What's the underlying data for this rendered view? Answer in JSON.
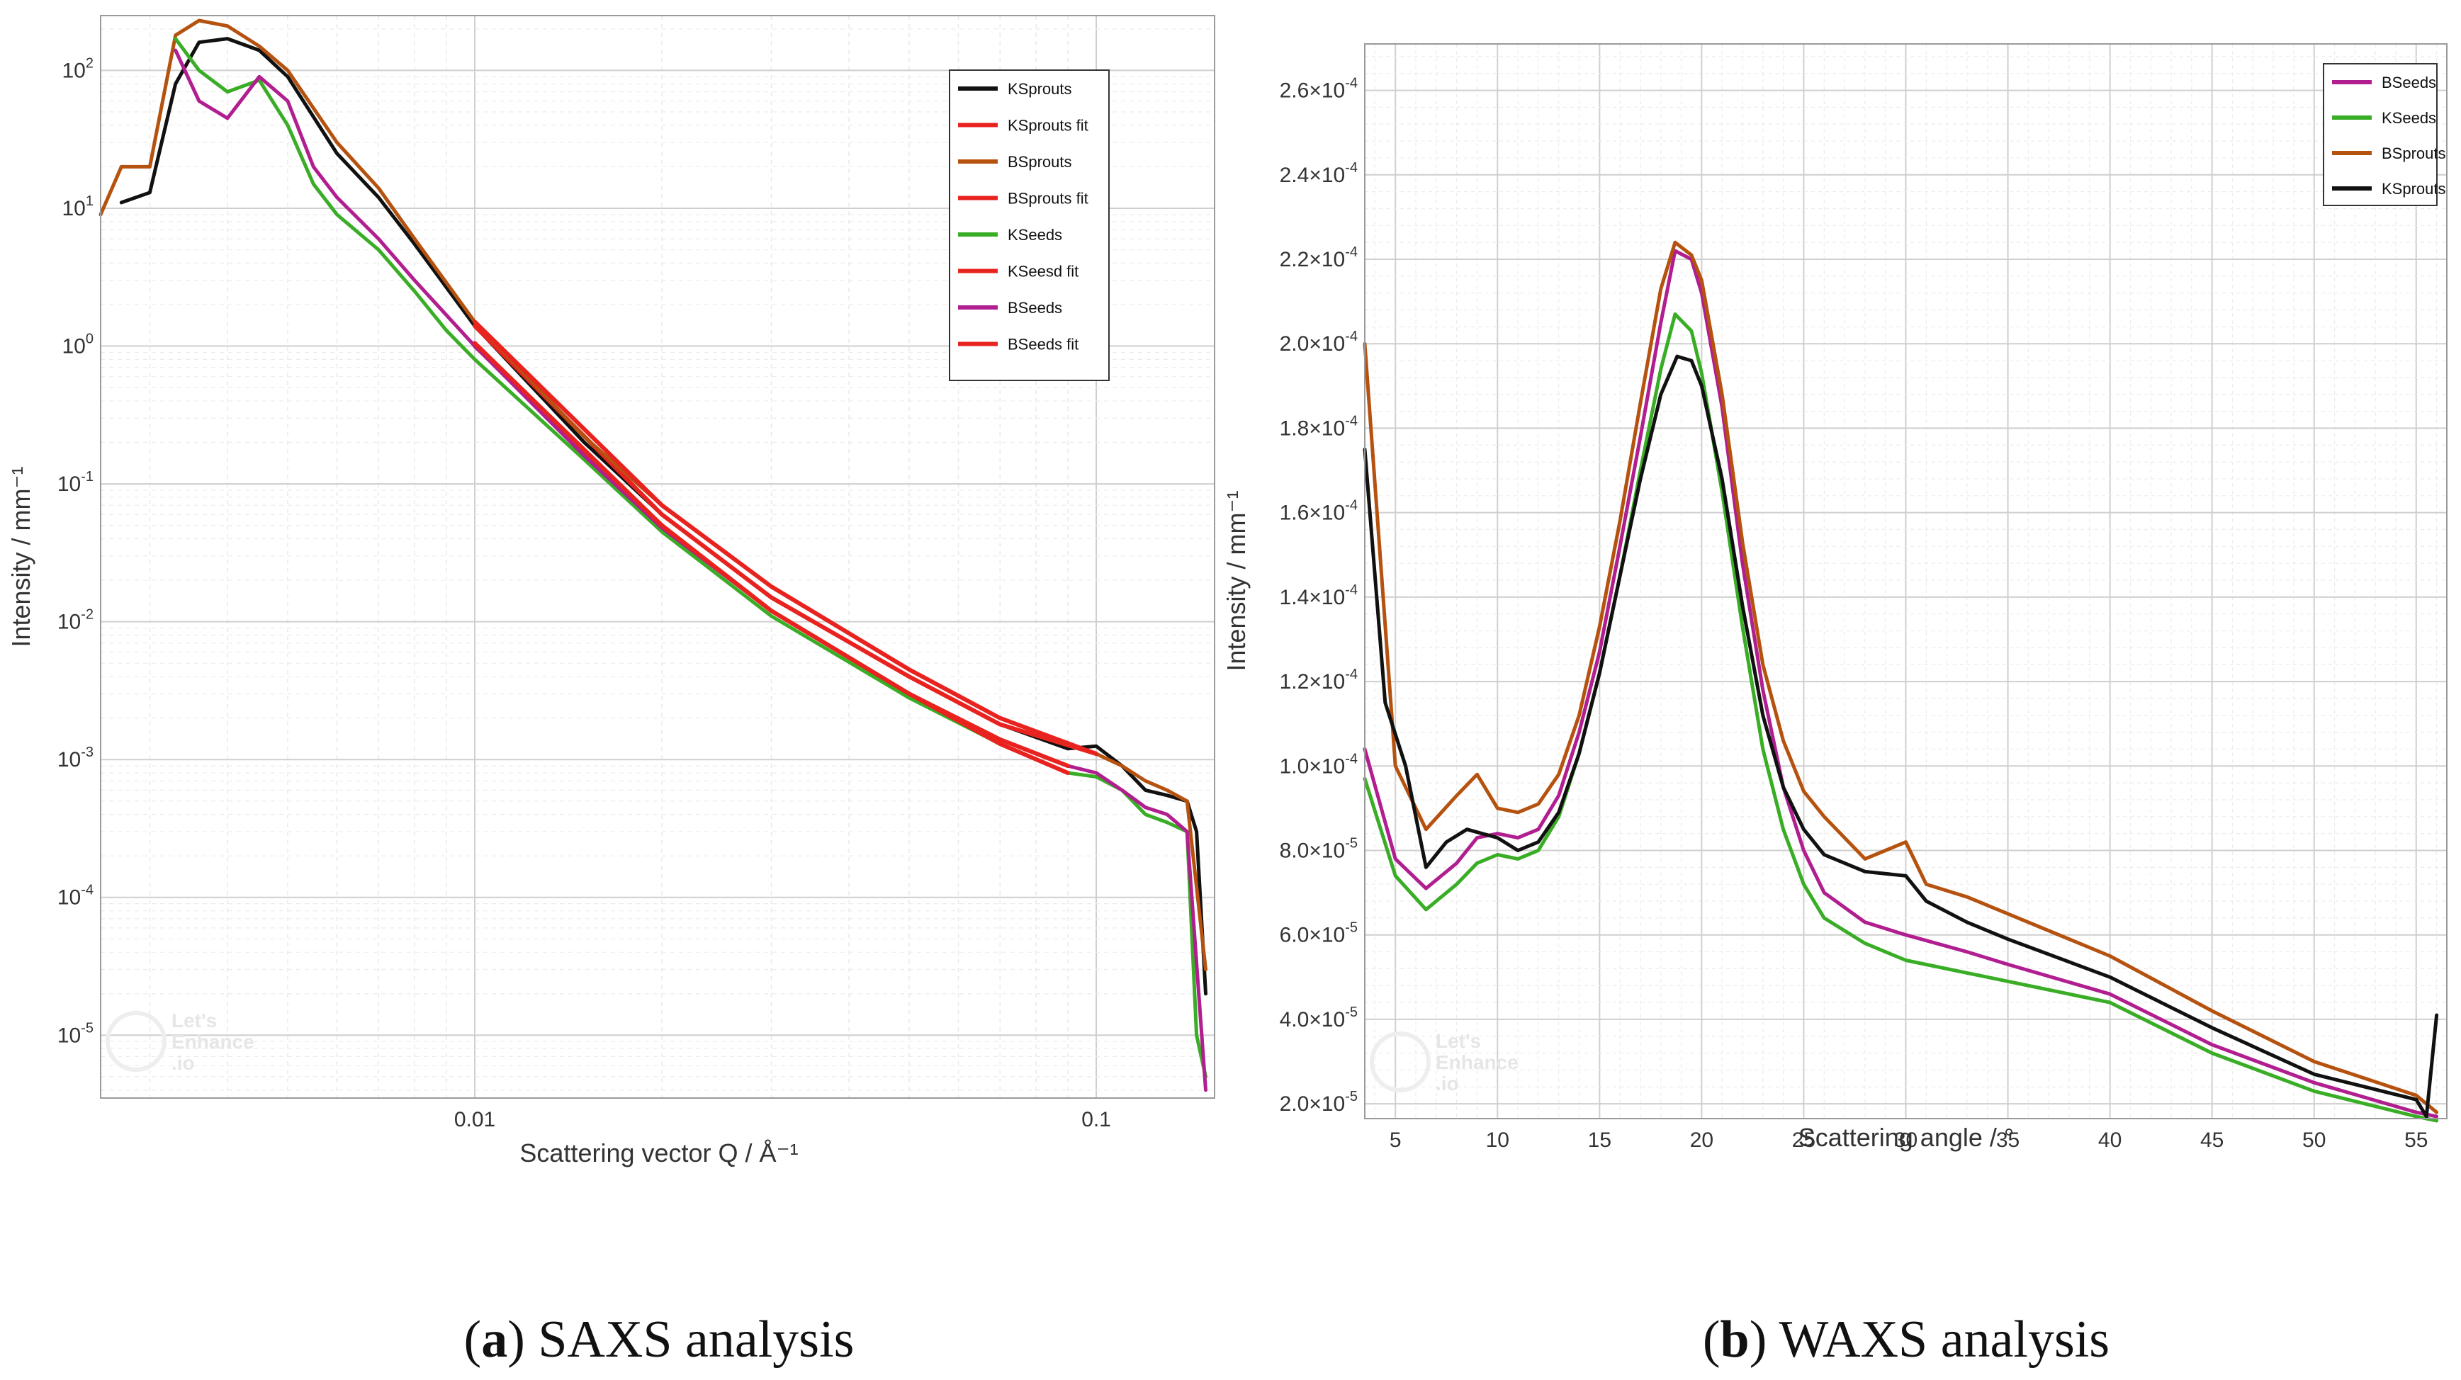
{
  "chart_data": [
    {
      "type": "line",
      "panel": "a",
      "caption_letter": "a",
      "caption_text": " SAXS analysis",
      "xlabel": "Scattering vector Q / Å⁻¹",
      "ylabel": "Intensity / mm⁻¹",
      "xscale": "log",
      "yscale": "log",
      "xlim": [
        0.0025,
        0.155
      ],
      "ylim": [
        3.5e-06,
        250
      ],
      "legend_position": "top-right",
      "x_ticks": [
        {
          "v": 0.01,
          "label": "0.01"
        },
        {
          "v": 0.1,
          "label": "0.1"
        }
      ],
      "y_ticks": [
        {
          "v": 100,
          "base": "10",
          "exp": "2"
        },
        {
          "v": 10,
          "base": "10",
          "exp": "1"
        },
        {
          "v": 1,
          "base": "10",
          "exp": "0"
        },
        {
          "v": 0.1,
          "base": "10",
          "exp": "-1"
        },
        {
          "v": 0.01,
          "base": "10",
          "exp": "-2"
        },
        {
          "v": 0.001,
          "base": "10",
          "exp": "-3"
        },
        {
          "v": 0.0001,
          "base": "10",
          "exp": "-4"
        },
        {
          "v": 1e-05,
          "base": "10",
          "exp": "-5"
        }
      ],
      "watermark": [
        "Let's",
        "Enhance",
        ".io"
      ],
      "series": [
        {
          "name": "KSprouts",
          "color": "#111111",
          "x": [
            0.0027,
            0.003,
            0.0033,
            0.0036,
            0.004,
            0.0045,
            0.005,
            0.006,
            0.007,
            0.008,
            0.01,
            0.015,
            0.02,
            0.03,
            0.05,
            0.07,
            0.09,
            0.1,
            0.11,
            0.12,
            0.13,
            0.14,
            0.145,
            0.15
          ],
          "y": [
            11,
            13,
            80,
            160,
            170,
            140,
            90,
            25,
            12,
            5.5,
            1.4,
            0.2,
            0.06,
            0.015,
            0.004,
            0.0018,
            0.0012,
            0.00125,
            0.0009,
            0.0006,
            0.00055,
            0.0005,
            0.0003,
            2e-05
          ]
        },
        {
          "name": "KSprouts fit",
          "color": "#e8231f",
          "x": [
            0.01,
            0.02,
            0.03,
            0.05,
            0.07,
            0.1
          ],
          "y": [
            1.4,
            0.06,
            0.015,
            0.004,
            0.0018,
            0.0011
          ]
        },
        {
          "name": "BSprouts",
          "color": "#b5520f",
          "x": [
            0.0025,
            0.0027,
            0.003,
            0.0033,
            0.0036,
            0.004,
            0.0045,
            0.005,
            0.006,
            0.007,
            0.008,
            0.01,
            0.015,
            0.02,
            0.03,
            0.05,
            0.07,
            0.09,
            0.1,
            0.11,
            0.12,
            0.13,
            0.14,
            0.15
          ],
          "y": [
            9,
            20,
            20,
            180,
            230,
            210,
            150,
            100,
            30,
            14,
            6,
            1.5,
            0.22,
            0.07,
            0.018,
            0.0045,
            0.002,
            0.0013,
            0.0011,
            0.0009,
            0.0007,
            0.0006,
            0.0005,
            3e-05
          ]
        },
        {
          "name": "BSprouts fit",
          "color": "#e8231f",
          "x": [
            0.01,
            0.02,
            0.03,
            0.05,
            0.07,
            0.1
          ],
          "y": [
            1.5,
            0.07,
            0.018,
            0.0045,
            0.002,
            0.0011
          ]
        },
        {
          "name": "KSeeds",
          "color": "#3aad26",
          "x": [
            0.0033,
            0.0036,
            0.004,
            0.0045,
            0.005,
            0.0055,
            0.006,
            0.007,
            0.008,
            0.009,
            0.01,
            0.015,
            0.02,
            0.03,
            0.05,
            0.07,
            0.09,
            0.1,
            0.11,
            0.12,
            0.13,
            0.14,
            0.145,
            0.15
          ],
          "y": [
            170,
            100,
            70,
            85,
            40,
            15,
            9,
            5,
            2.5,
            1.3,
            0.8,
            0.15,
            0.045,
            0.011,
            0.0028,
            0.0013,
            0.0008,
            0.00075,
            0.0006,
            0.0004,
            0.00035,
            0.0003,
            1e-05,
            5e-06
          ]
        },
        {
          "name": "KSeesd fit",
          "color": "#e8231f",
          "x": [
            0.01,
            0.02,
            0.03,
            0.05,
            0.07,
            0.09
          ],
          "y": [
            1.0,
            0.05,
            0.012,
            0.003,
            0.0013,
            0.0008
          ]
        },
        {
          "name": "BSeeds",
          "color": "#b01e8f",
          "x": [
            0.0033,
            0.0036,
            0.004,
            0.0045,
            0.005,
            0.0055,
            0.006,
            0.007,
            0.008,
            0.01,
            0.015,
            0.02,
            0.03,
            0.05,
            0.07,
            0.09,
            0.1,
            0.11,
            0.12,
            0.13,
            0.14,
            0.15
          ],
          "y": [
            140,
            60,
            45,
            90,
            60,
            20,
            12,
            6,
            3,
            1.0,
            0.16,
            0.048,
            0.012,
            0.003,
            0.0014,
            0.0009,
            0.0008,
            0.0006,
            0.00045,
            0.0004,
            0.0003,
            4e-06
          ]
        },
        {
          "name": "BSeeds fit",
          "color": "#e8231f",
          "x": [
            0.01,
            0.02,
            0.03,
            0.05,
            0.07,
            0.09
          ],
          "y": [
            1.05,
            0.05,
            0.012,
            0.003,
            0.0014,
            0.0009
          ]
        }
      ]
    },
    {
      "type": "line",
      "panel": "b",
      "caption_letter": "b",
      "caption_text": " WAXS analysis",
      "xlabel": "Scattering angle / °",
      "ylabel": "Intensity / mm⁻¹",
      "xscale": "linear",
      "yscale": "linear",
      "xlim": [
        3.5,
        56.5
      ],
      "ylim": [
        1.65e-05,
        0.000271
      ],
      "legend_position": "top-right",
      "x_ticks": [
        {
          "v": 5,
          "label": "5"
        },
        {
          "v": 10,
          "label": "10"
        },
        {
          "v": 15,
          "label": "15"
        },
        {
          "v": 20,
          "label": "20"
        },
        {
          "v": 25,
          "label": "25"
        },
        {
          "v": 30,
          "label": "30"
        },
        {
          "v": 35,
          "label": "35"
        },
        {
          "v": 40,
          "label": "40"
        },
        {
          "v": 45,
          "label": "45"
        },
        {
          "v": 50,
          "label": "50"
        },
        {
          "v": 55,
          "label": "55"
        }
      ],
      "y_ticks": [
        {
          "v": 2e-05,
          "mant": "2.0×10",
          "exp": "-5"
        },
        {
          "v": 4e-05,
          "mant": "4.0×10",
          "exp": "-5"
        },
        {
          "v": 6e-05,
          "mant": "6.0×10",
          "exp": "-5"
        },
        {
          "v": 8e-05,
          "mant": "8.0×10",
          "exp": "-5"
        },
        {
          "v": 0.0001,
          "mant": "1.0×10",
          "exp": "-4"
        },
        {
          "v": 0.00012,
          "mant": "1.2×10",
          "exp": "-4"
        },
        {
          "v": 0.00014,
          "mant": "1.4×10",
          "exp": "-4"
        },
        {
          "v": 0.00016,
          "mant": "1.6×10",
          "exp": "-4"
        },
        {
          "v": 0.00018,
          "mant": "1.8×10",
          "exp": "-4"
        },
        {
          "v": 0.0002,
          "mant": "2.0×10",
          "exp": "-4"
        },
        {
          "v": 0.00022,
          "mant": "2.2×10",
          "exp": "-4"
        },
        {
          "v": 0.00024,
          "mant": "2.4×10",
          "exp": "-4"
        },
        {
          "v": 0.00026,
          "mant": "2.6×10",
          "exp": "-4"
        }
      ],
      "watermark": [
        "Let's",
        "Enhance",
        ".io"
      ],
      "series": [
        {
          "name": "BSeeds",
          "color": "#b01e8f",
          "x": [
            3.5,
            5,
            6.5,
            8,
            9,
            10,
            11,
            12,
            13,
            14,
            15,
            16,
            17,
            18,
            18.7,
            19.5,
            20,
            21,
            22,
            23,
            24,
            25,
            26,
            28,
            30,
            33,
            35,
            40,
            45,
            50,
            55,
            56
          ],
          "y": [
            0.000104,
            7.8e-05,
            7.1e-05,
            7.7e-05,
            8.3e-05,
            8.4e-05,
            8.3e-05,
            8.5e-05,
            9.3e-05,
            0.000108,
            0.000127,
            0.000152,
            0.000178,
            0.000205,
            0.000222,
            0.00022,
            0.000212,
            0.000185,
            0.000148,
            0.000118,
            9.5e-05,
            8e-05,
            7e-05,
            6.3e-05,
            6e-05,
            5.6e-05,
            5.3e-05,
            4.6e-05,
            3.4e-05,
            2.5e-05,
            1.8e-05,
            1.7e-05
          ]
        },
        {
          "name": "KSeeds",
          "color": "#3aad26",
          "x": [
            3.5,
            5,
            6.5,
            8,
            9,
            10,
            11,
            12,
            13,
            14,
            15,
            16,
            17,
            18,
            18.7,
            19.5,
            20,
            21,
            22,
            23,
            24,
            25,
            26,
            28,
            30,
            33,
            35,
            40,
            45,
            50,
            55,
            56
          ],
          "y": [
            9.7e-05,
            7.4e-05,
            6.6e-05,
            7.2e-05,
            7.7e-05,
            7.9e-05,
            7.8e-05,
            8e-05,
            8.8e-05,
            0.000103,
            0.000122,
            0.000145,
            0.00017,
            0.000194,
            0.000207,
            0.000203,
            0.000193,
            0.000165,
            0.000133,
            0.000104,
            8.5e-05,
            7.2e-05,
            6.4e-05,
            5.8e-05,
            5.4e-05,
            5.1e-05,
            4.9e-05,
            4.4e-05,
            3.2e-05,
            2.3e-05,
            1.7e-05,
            1.6e-05
          ]
        },
        {
          "name": "BSprouts",
          "color": "#b5520f",
          "x": [
            3.5,
            5,
            6.5,
            8,
            9,
            10,
            11,
            12,
            13,
            14,
            15,
            16,
            17,
            18,
            18.7,
            19.5,
            20,
            21,
            22,
            23,
            24,
            25,
            26,
            28,
            30,
            31,
            33,
            35,
            40,
            45,
            50,
            55,
            56
          ],
          "y": [
            0.0002,
            0.0001,
            8.5e-05,
            9.3e-05,
            9.8e-05,
            9e-05,
            8.9e-05,
            9.1e-05,
            9.8e-05,
            0.000112,
            0.000133,
            0.000158,
            0.000186,
            0.000213,
            0.000224,
            0.000221,
            0.000215,
            0.000188,
            0.000153,
            0.000124,
            0.000106,
            9.4e-05,
            8.8e-05,
            7.8e-05,
            8.2e-05,
            7.2e-05,
            6.9e-05,
            6.5e-05,
            5.5e-05,
            4.2e-05,
            3e-05,
            2.2e-05,
            1.8e-05
          ]
        },
        {
          "name": "KSprouts",
          "color": "#111111",
          "x": [
            3.5,
            4.5,
            5.5,
            6.5,
            7.5,
            8.5,
            10,
            11,
            12,
            13,
            14,
            15,
            16,
            17,
            18,
            18.8,
            19.5,
            20,
            21,
            22,
            23,
            24,
            25,
            26,
            28,
            30,
            31,
            33,
            35,
            40,
            45,
            50,
            55,
            55.5,
            56
          ],
          "y": [
            0.000175,
            0.000115,
            0.0001,
            7.6e-05,
            8.2e-05,
            8.5e-05,
            8.3e-05,
            8e-05,
            8.2e-05,
            8.9e-05,
            0.000103,
            0.000122,
            0.000145,
            0.000168,
            0.000188,
            0.000197,
            0.000196,
            0.00019,
            0.000168,
            0.000138,
            0.000112,
            9.5e-05,
            8.5e-05,
            7.9e-05,
            7.5e-05,
            7.4e-05,
            6.8e-05,
            6.3e-05,
            5.9e-05,
            5e-05,
            3.8e-05,
            2.7e-05,
            2.1e-05,
            1.7e-05,
            4.1e-05
          ]
        }
      ]
    }
  ]
}
